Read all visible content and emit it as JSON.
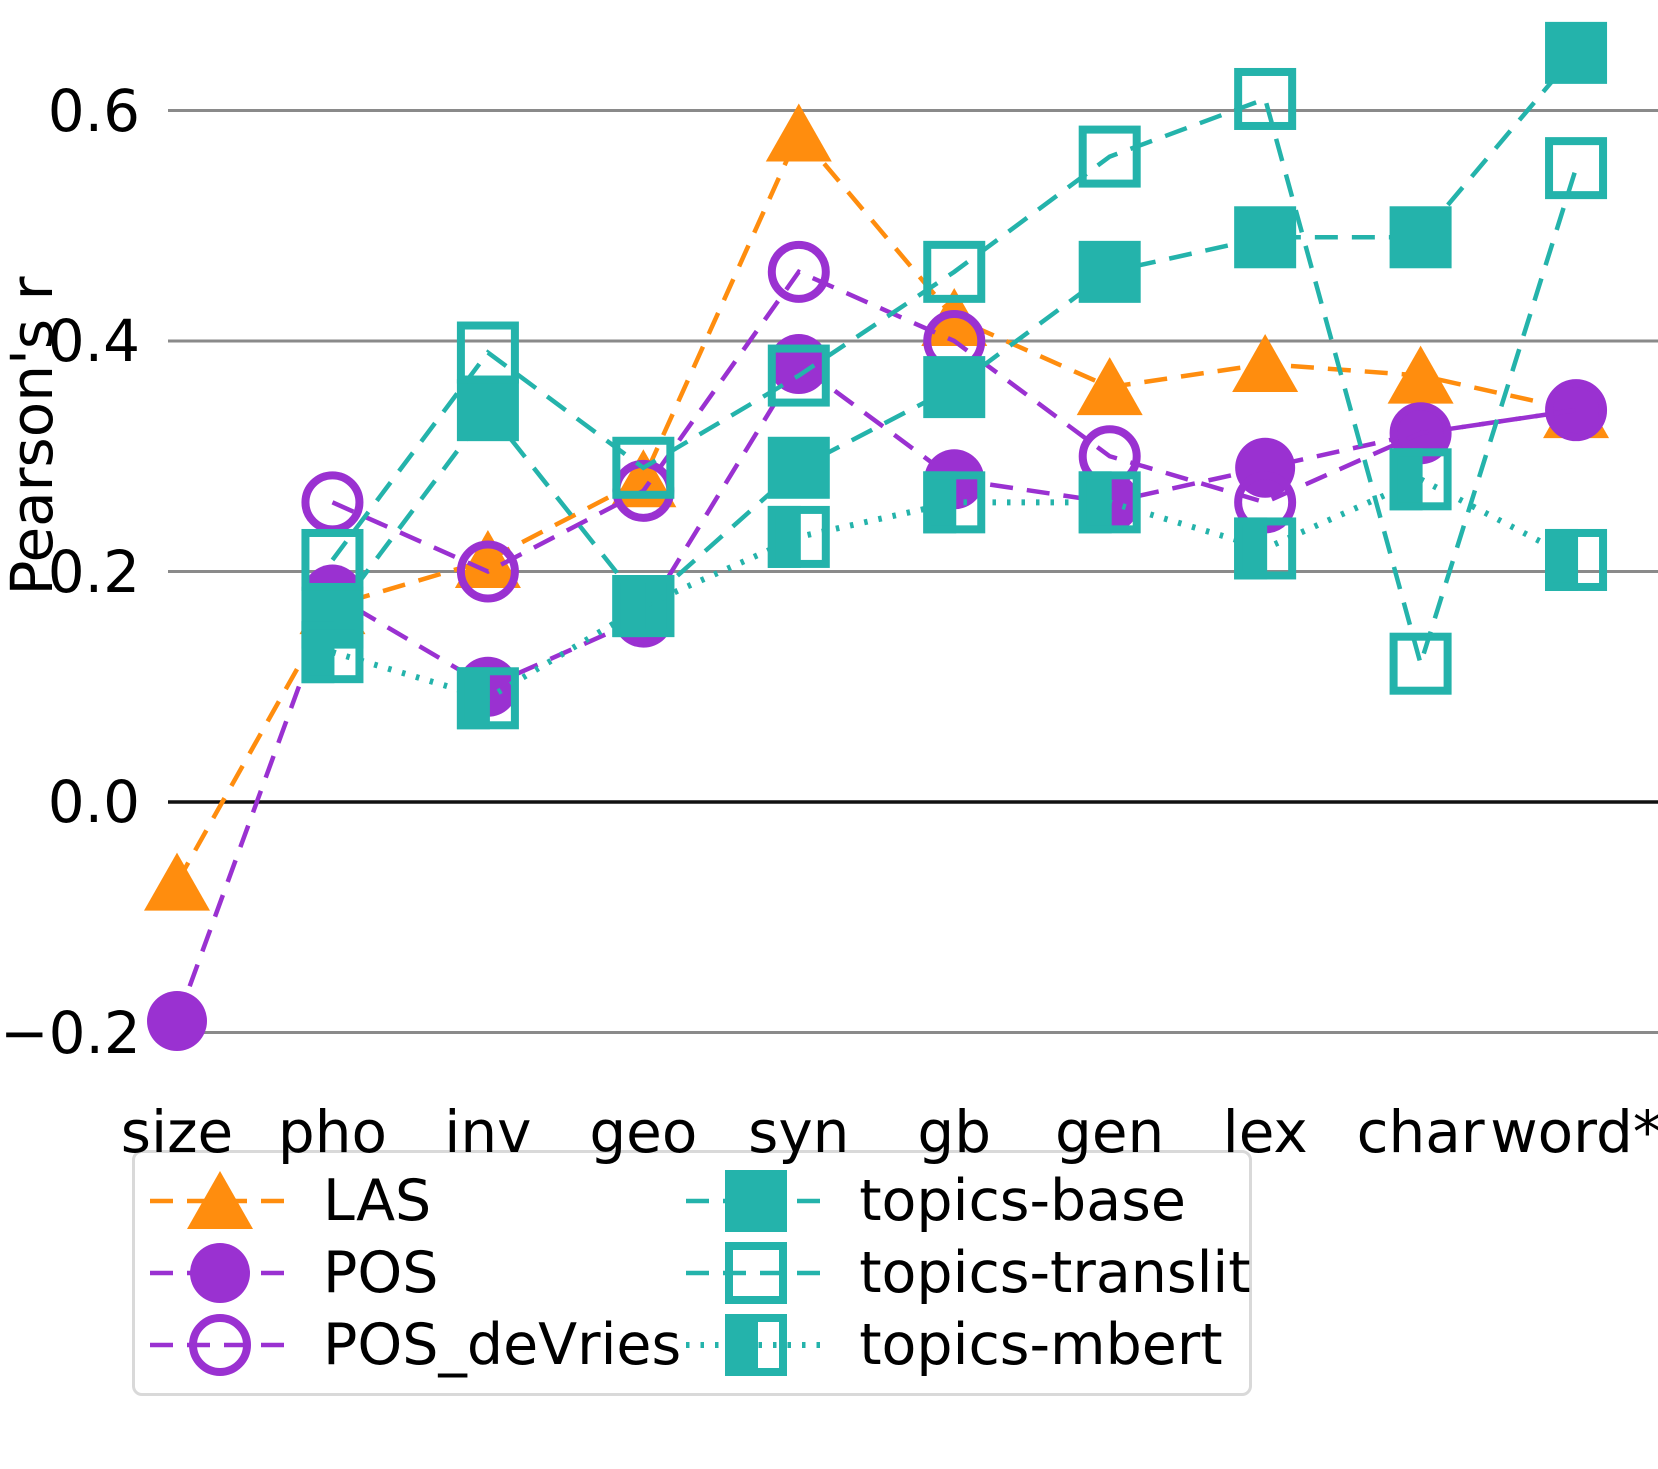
{
  "figure": {
    "background": "#ffffff"
  },
  "chart_data": {
    "type": "line",
    "title": "",
    "xlabel": "",
    "ylabel": "Pearson's r",
    "categories": [
      "size",
      "pho",
      "inv",
      "geo",
      "syn",
      "gb",
      "gen",
      "lex",
      "char",
      "word*"
    ],
    "yticks": [
      {
        "label": "0.6",
        "value": 0.6
      },
      {
        "label": "0.4",
        "value": 0.4
      },
      {
        "label": "0.2",
        "value": 0.2
      },
      {
        "label": "0.0",
        "value": 0.0
      },
      {
        "label": "−0.2",
        "value": -0.2
      }
    ],
    "ylim": [
      -0.27,
      0.68
    ],
    "grid": "horizontal",
    "legend_position": "bottom",
    "colors": {
      "orange": "#ff8d0e",
      "purple": "#9a31d1",
      "teal": "#24b3ab",
      "grid": "#8a8a8a",
      "zero_line": "#111111",
      "legend_border": "#d9d9d9",
      "text": "#000000"
    },
    "series": [
      {
        "name": "LAS",
        "color": "#ff8d0e",
        "marker": "triangle",
        "fill": "full",
        "line": "dashed",
        "values": [
          -0.07,
          0.17,
          0.21,
          0.28,
          0.58,
          0.42,
          0.36,
          0.38,
          0.37,
          0.34
        ]
      },
      {
        "name": "POS",
        "color": "#9a31d1",
        "marker": "circle",
        "fill": "full",
        "line": "dashed",
        "values": [
          -0.19,
          0.18,
          0.1,
          0.16,
          0.38,
          0.28,
          0.26,
          0.29,
          0.32,
          0.34
        ]
      },
      {
        "name": "POS_deVries",
        "color": "#9a31d1",
        "marker": "circle",
        "fill": "none",
        "line": "dashed",
        "values": [
          null,
          0.26,
          0.2,
          0.27,
          0.46,
          0.4,
          0.3,
          0.26,
          0.32,
          0.34
        ]
      },
      {
        "name": "topics-base",
        "color": "#24b3ab",
        "marker": "square",
        "fill": "full",
        "line": "dashed",
        "values": [
          null,
          0.16,
          0.34,
          0.17,
          0.29,
          0.36,
          0.46,
          0.49,
          0.49,
          0.65
        ]
      },
      {
        "name": "topics-translit",
        "color": "#24b3ab",
        "marker": "square",
        "fill": "none",
        "line": "dashed",
        "values": [
          null,
          0.21,
          0.39,
          0.29,
          0.37,
          0.46,
          0.56,
          0.61,
          0.12,
          0.55
        ]
      },
      {
        "name": "topics-mbert",
        "color": "#24b3ab",
        "marker": "square",
        "fill": "left",
        "line": "dotted",
        "values": [
          null,
          0.13,
          0.09,
          0.17,
          0.23,
          0.26,
          0.26,
          0.22,
          0.28,
          0.21
        ]
      }
    ]
  },
  "legend": {
    "columns": [
      [
        "LAS",
        "POS",
        "POS_deVries"
      ],
      [
        "topics-base",
        "topics-translit",
        "topics-mbert"
      ]
    ]
  }
}
